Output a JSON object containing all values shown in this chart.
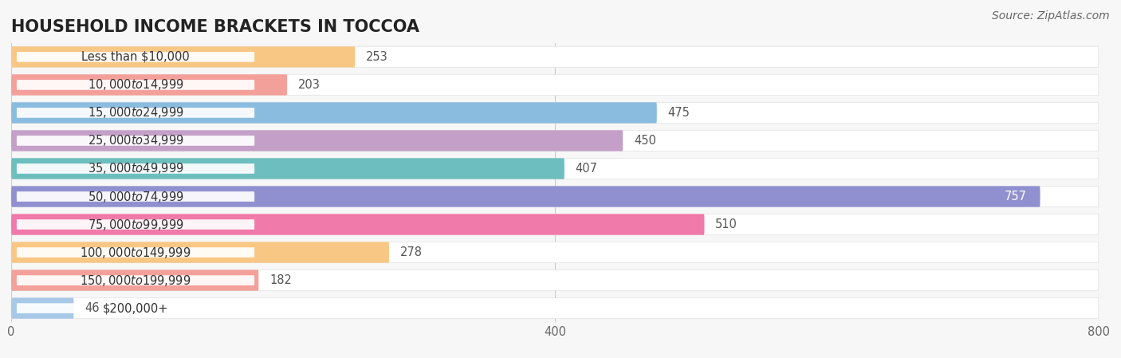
{
  "title": "HOUSEHOLD INCOME BRACKETS IN TOCCOA",
  "source": "Source: ZipAtlas.com",
  "categories": [
    "Less than $10,000",
    "$10,000 to $14,999",
    "$15,000 to $24,999",
    "$25,000 to $34,999",
    "$35,000 to $49,999",
    "$50,000 to $74,999",
    "$75,000 to $99,999",
    "$100,000 to $149,999",
    "$150,000 to $199,999",
    "$200,000+"
  ],
  "values": [
    253,
    203,
    475,
    450,
    407,
    757,
    510,
    278,
    182,
    46
  ],
  "colors": [
    "#F9C784",
    "#F4A09A",
    "#89BCDF",
    "#C4A0C8",
    "#6DBFBF",
    "#9090D0",
    "#F07AAA",
    "#F9C784",
    "#F4A09A",
    "#A8C8E8"
  ],
  "xlim": [
    0,
    800
  ],
  "bar_height": 0.65,
  "background_color": "#f7f7f7",
  "title_fontsize": 15,
  "label_fontsize": 10.5,
  "value_fontsize": 10.5,
  "tick_fontsize": 10.5,
  "source_fontsize": 10
}
